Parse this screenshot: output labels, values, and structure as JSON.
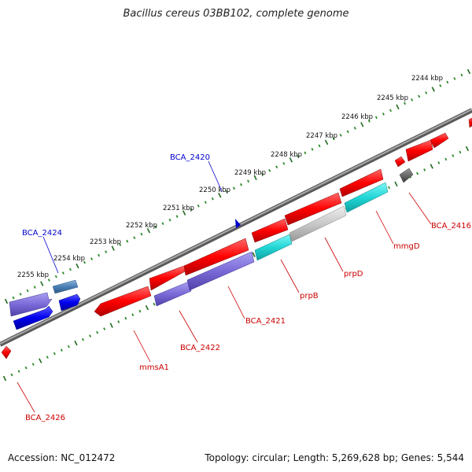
{
  "title": "Bacillus cereus 03BB102, complete genome",
  "footer": {
    "accession": "Accession: NC_012472",
    "summary": "Topology: circular; Length: 5,269,628 bp; Genes: 5,544"
  },
  "colors": {
    "backbone": "#808080",
    "tick_minor": "#2e8b2e",
    "tick_major": "#1f6b1f",
    "label_blue": "#0000cc",
    "label_red": "#cc0000"
  },
  "ruler_labels": [
    "2244 kbp",
    "2245 kbp",
    "2246 kbp",
    "2247 kbp",
    "2248 kbp",
    "2249 kbp",
    "2250 kbp",
    "2251 kbp",
    "2252 kbp",
    "2253 kbp",
    "2254 kbp",
    "2255 kbp"
  ],
  "gene_labels": [
    {
      "text": "BCA_2420",
      "color": "blue"
    },
    {
      "text": "BCA_2424",
      "color": "blue"
    },
    {
      "text": "BCA_2416",
      "color": "red"
    },
    {
      "text": "mmgD",
      "color": "red"
    },
    {
      "text": "prpD",
      "color": "red"
    },
    {
      "text": "prpB",
      "color": "red"
    },
    {
      "text": "BCA_2421",
      "color": "red"
    },
    {
      "text": "BCA_2422",
      "color": "red"
    },
    {
      "text": "mmsA1",
      "color": "red"
    },
    {
      "text": "BCA_2426",
      "color": "red"
    }
  ]
}
